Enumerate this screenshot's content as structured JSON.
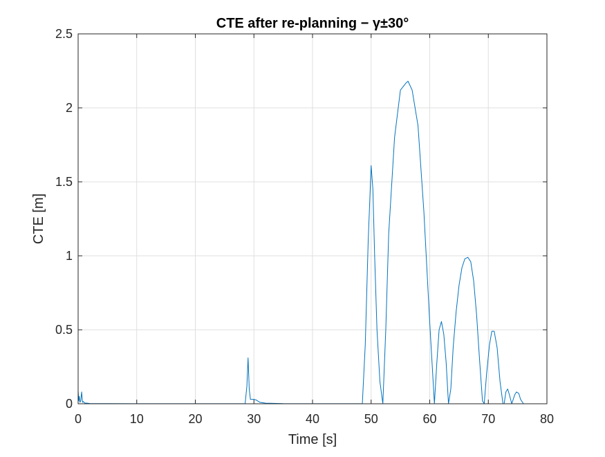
{
  "chart_data": {
    "type": "line",
    "title": "CTE after re-planning − γ±30°",
    "xlabel": "Time [s]",
    "ylabel": "CTE [m]",
    "xlim": [
      0,
      80
    ],
    "ylim": [
      0,
      2.5
    ],
    "xticks": [
      0,
      10,
      20,
      30,
      40,
      50,
      60,
      70,
      80
    ],
    "yticks": [
      0,
      0.5,
      1,
      1.5,
      2,
      2.5
    ],
    "xtick_labels": [
      "0",
      "10",
      "20",
      "30",
      "40",
      "50",
      "60",
      "70",
      "80"
    ],
    "ytick_labels": [
      "0",
      "0.5",
      "1",
      "1.5",
      "2",
      "2.5"
    ],
    "grid": true,
    "series_color": "#0072bd",
    "series": [
      {
        "x": [
          0,
          0.1,
          0.2,
          0.3,
          0.45,
          0.6,
          0.75,
          0.9,
          1.1,
          1.5,
          2,
          5,
          10,
          20,
          28.5,
          28.8,
          29.0,
          29.2,
          29.4,
          30.0,
          30.4,
          31.0,
          32.0,
          35,
          40,
          45,
          48.5,
          49.0,
          49.5,
          50.0,
          50.3,
          50.6,
          51.0,
          51.5,
          52.0,
          52.5,
          53.0,
          54.0,
          55.0,
          56.0,
          56.3,
          57.0,
          58.0,
          59.0,
          60.0,
          60.8,
          61.2,
          61.6,
          62.0,
          62.4,
          62.8,
          63.2,
          63.6,
          64.0,
          64.5,
          65.0,
          65.5,
          66.0,
          66.5,
          67.0,
          67.5,
          68.0,
          68.5,
          69.0,
          69.3,
          69.7,
          70.2,
          70.6,
          71.0,
          71.5,
          72.0,
          72.5,
          72.7,
          73.0,
          73.3,
          73.6,
          74.0,
          74.5,
          74.8,
          75.2,
          75.5,
          76.0,
          77.0,
          80
        ],
        "y": [
          0.09,
          0.02,
          0.05,
          0.01,
          0.02,
          0.08,
          0.01,
          0.015,
          0.005,
          0.004,
          0.002,
          0.001,
          0.0005,
          0.0005,
          0.001,
          0.12,
          0.31,
          0.1,
          0.03,
          0.03,
          0.025,
          0.01,
          0.004,
          0.001,
          0.0005,
          0.0005,
          0.001,
          0.4,
          1.1,
          1.61,
          1.45,
          1.0,
          0.5,
          0.15,
          0.0,
          0.5,
          1.15,
          1.8,
          2.12,
          2.17,
          2.18,
          2.12,
          1.88,
          1.3,
          0.55,
          0.0,
          0.27,
          0.5,
          0.556,
          0.47,
          0.28,
          0.0,
          0.1,
          0.38,
          0.62,
          0.8,
          0.92,
          0.98,
          0.99,
          0.96,
          0.83,
          0.6,
          0.3,
          0.02,
          0.0,
          0.2,
          0.4,
          0.49,
          0.49,
          0.38,
          0.15,
          0.0,
          0.0,
          0.08,
          0.1,
          0.06,
          0.0,
          0.06,
          0.08,
          0.07,
          0.03,
          0.0,
          0.0,
          0.0
        ]
      }
    ]
  }
}
